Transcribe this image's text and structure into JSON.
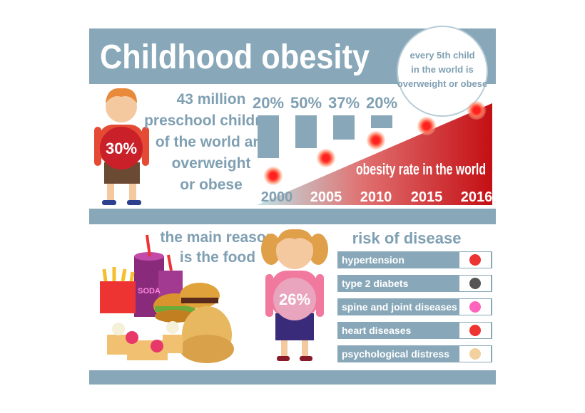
{
  "title": "Childhood obesity",
  "callout_lines": [
    "every 5th child",
    "in the world is",
    "overweight or obese"
  ],
  "boy_percent": "30%",
  "statement_lines": [
    "43 million",
    "preschool children",
    "of the world are",
    "overweight",
    "or obese"
  ],
  "bar_labels": [
    "20%",
    "50%",
    "37%",
    "20%"
  ],
  "trend_label": "obesity rate in the world",
  "years": [
    "2000",
    "2005",
    "2010",
    "2015",
    "2016"
  ],
  "food_caption_lines": [
    "the main reason",
    "is the food"
  ],
  "soda_label": "SODA",
  "girl_percent": "26%",
  "risks_title": "risk of disease",
  "risks": [
    "hypertension",
    "type 2 diabets",
    "spine and joint diseases",
    "heart diseases",
    "psychological distress"
  ]
}
